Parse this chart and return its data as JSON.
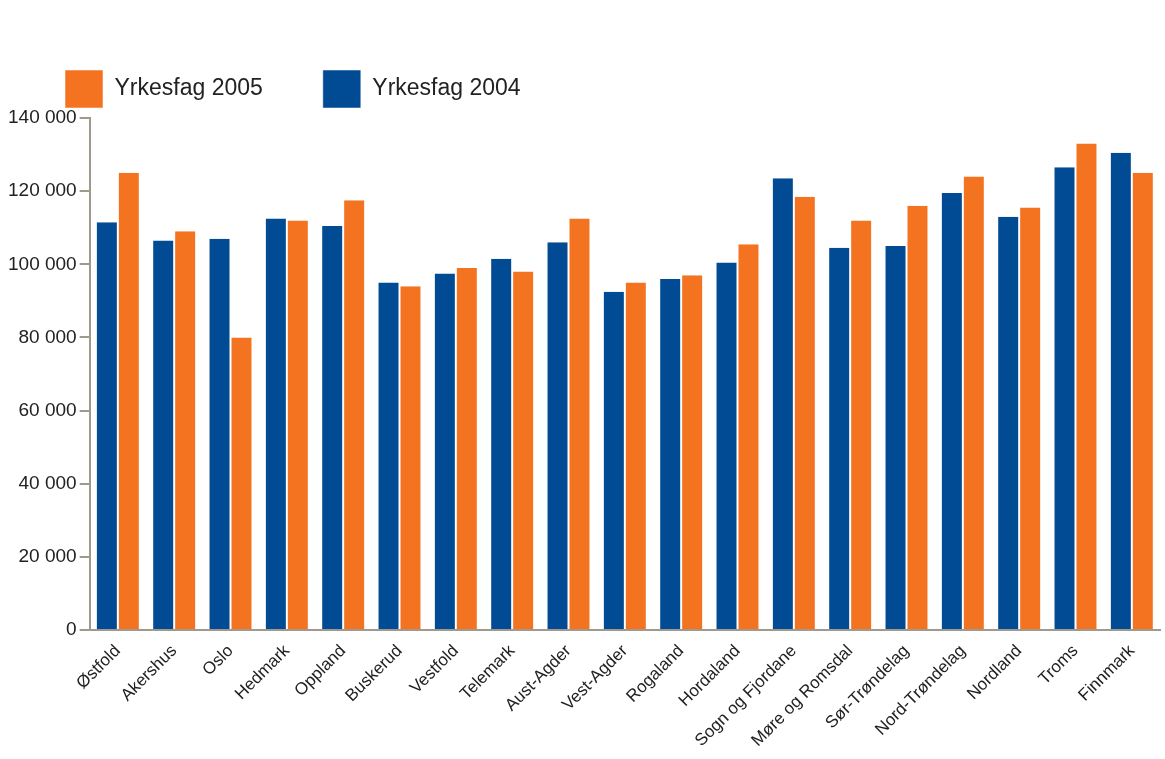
{
  "chart_data": {
    "type": "bar",
    "categories": [
      "Østfold",
      "Akershus",
      "Oslo",
      "Hedmark",
      "Oppland",
      "Buskerud",
      "Vestfold",
      "Telemark",
      "Aust-Agder",
      "Vest-Agder",
      "Rogaland",
      "Hordaland",
      "Sogn og Fjordane",
      "Møre og Romsdal",
      "Sør-Trøndelag",
      "Nord-Trøndelag",
      "Nordland",
      "Troms",
      "Finnmark"
    ],
    "series": [
      {
        "name": "Yrkesfag 2004",
        "color": "#004b93",
        "values": [
          111500,
          106500,
          107000,
          112500,
          110500,
          95000,
          97500,
          101500,
          106000,
          92500,
          96000,
          100500,
          123500,
          104500,
          105000,
          119500,
          113000,
          126500,
          130500
        ]
      },
      {
        "name": "Yrkesfag 2005",
        "color": "#f47321",
        "values": [
          125000,
          109000,
          80000,
          112000,
          117500,
          94000,
          99000,
          98000,
          112500,
          95000,
          97000,
          105500,
          118500,
          112000,
          116000,
          124000,
          115500,
          133000,
          125000
        ]
      }
    ],
    "ylim": [
      0,
      140000
    ],
    "yticks": [
      0,
      {
        "value": 20000,
        "label": "20 000"
      },
      {
        "value": 40000,
        "label": "40 000"
      },
      {
        "value": 60000,
        "label": "60 000"
      },
      {
        "value": 80000,
        "label": "80 000"
      },
      {
        "value": 100000,
        "label": "100 000"
      },
      {
        "value": 120000,
        "label": "120 000"
      },
      {
        "value": 140000,
        "label": "140 000"
      }
    ],
    "grid": false,
    "legend": "top left"
  }
}
